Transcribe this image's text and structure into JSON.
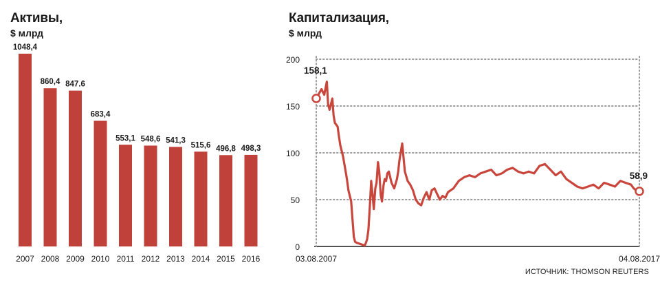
{
  "colors": {
    "bar": "#c0413a",
    "line": "#c9463d",
    "grid": "#9a9a9a",
    "text": "#1a1a1a",
    "axis": "#1a1a1a"
  },
  "chart_data": [
    {
      "type": "bar",
      "title": "Активы,",
      "subtitle": "$ млрд",
      "categories": [
        "2007",
        "2008",
        "2009",
        "2010",
        "2011",
        "2012",
        "2013",
        "2014",
        "2015",
        "2016"
      ],
      "values": [
        1048.4,
        860.4,
        847.6,
        683.4,
        553.1,
        548.6,
        541.3,
        515.6,
        496.8,
        498.3
      ],
      "value_labels": [
        "1048,4",
        "860,4",
        "847.6",
        "683,4",
        "553,1",
        "548,6",
        "541,3",
        "515,6",
        "496,8",
        "498,3"
      ],
      "ylim": [
        0,
        1048.4
      ],
      "grid": false,
      "legend": "none"
    },
    {
      "type": "line",
      "title": "Капитализация,",
      "subtitle": "$ млрд",
      "x_start_label": "03.08.2007",
      "x_end_label": "04.08.2017",
      "ylim": [
        0,
        200
      ],
      "y_ticks": [
        0,
        50,
        100,
        150,
        200
      ],
      "grid": true,
      "legend": "none",
      "annotations": [
        {
          "x": "03.08.2007",
          "y": 158.1,
          "label": "158,1"
        },
        {
          "x": "04.08.2017",
          "y": 58.9,
          "label": "58,9"
        }
      ],
      "x_dates": [
        "03.08.2007",
        "01.10.2007",
        "01.11.2007",
        "01.12.2007",
        "15.12.2007",
        "01.01.2008",
        "01.02.2008",
        "15.02.2008",
        "01.03.2008",
        "01.04.2008",
        "15.04.2008",
        "01.05.2008",
        "01.06.2008",
        "01.07.2008",
        "15.07.2008",
        "01.08.2008",
        "01.09.2008",
        "15.09.2008",
        "01.10.2008",
        "15.10.2008",
        "01.11.2008",
        "01.12.2008",
        "01.01.2009",
        "01.02.2009",
        "15.02.2009",
        "01.03.2009",
        "15.03.2009",
        "01.04.2009",
        "15.04.2009",
        "01.05.2009",
        "15.05.2009",
        "01.06.2009",
        "15.06.2009",
        "01.07.2009",
        "15.07.2009",
        "01.08.2009",
        "15.08.2009",
        "01.09.2009",
        "15.09.2009",
        "01.10.2009",
        "15.10.2009",
        "01.11.2009",
        "01.12.2009",
        "01.01.2010",
        "01.02.2010",
        "15.02.2010",
        "01.03.2010",
        "01.04.2010",
        "01.05.2010",
        "01.06.2010",
        "01.07.2010",
        "01.08.2010",
        "01.09.2010",
        "01.10.2010",
        "01.11.2010",
        "01.12.2010",
        "01.01.2011",
        "01.02.2011",
        "01.03.2011",
        "01.04.2011",
        "01.05.2011",
        "01.06.2011",
        "01.07.2011",
        "01.08.2011",
        "01.09.2011",
        "01.10.2011",
        "01.11.2011",
        "01.12.2011",
        "01.01.2012",
        "01.03.2012",
        "01.05.2012",
        "01.07.2012",
        "01.09.2012",
        "01.11.2012",
        "01.01.2013",
        "01.03.2013",
        "01.05.2013",
        "01.07.2013",
        "01.09.2013",
        "01.11.2013",
        "01.01.2014",
        "01.03.2014",
        "01.05.2014",
        "01.07.2014",
        "01.09.2014",
        "01.11.2014",
        "01.01.2015",
        "01.03.2015",
        "01.05.2015",
        "01.07.2015",
        "01.09.2015",
        "01.11.2015",
        "01.01.2016",
        "01.03.2016",
        "01.05.2016",
        "01.07.2016",
        "01.09.2016",
        "01.11.2016",
        "01.01.2017",
        "01.03.2017",
        "01.05.2017",
        "01.06.2017",
        "01.07.2017",
        "04.08.2017"
      ],
      "y_values": [
        158.1,
        168,
        162,
        176,
        152,
        146,
        158,
        140,
        132,
        128,
        118,
        108,
        96,
        80,
        72,
        60,
        48,
        30,
        10,
        5,
        4,
        3,
        2,
        1,
        4,
        8,
        18,
        45,
        70,
        55,
        40,
        62,
        68,
        90,
        80,
        55,
        48,
        65,
        72,
        70,
        78,
        80,
        68,
        62,
        72,
        80,
        92,
        110,
        80,
        70,
        66,
        60,
        50,
        46,
        44,
        52,
        58,
        50,
        60,
        62,
        56,
        50,
        54,
        52,
        58,
        60,
        62,
        66,
        70,
        74,
        76,
        74,
        78,
        80,
        82,
        76,
        78,
        82,
        84,
        80,
        78,
        80,
        78,
        86,
        88,
        82,
        76,
        80,
        72,
        68,
        64,
        62,
        64,
        66,
        62,
        68,
        66,
        64,
        70,
        68,
        66,
        62,
        60,
        58.9
      ]
    }
  ],
  "source_label": "ИСТОЧНИК: THOMSON REUTERS"
}
